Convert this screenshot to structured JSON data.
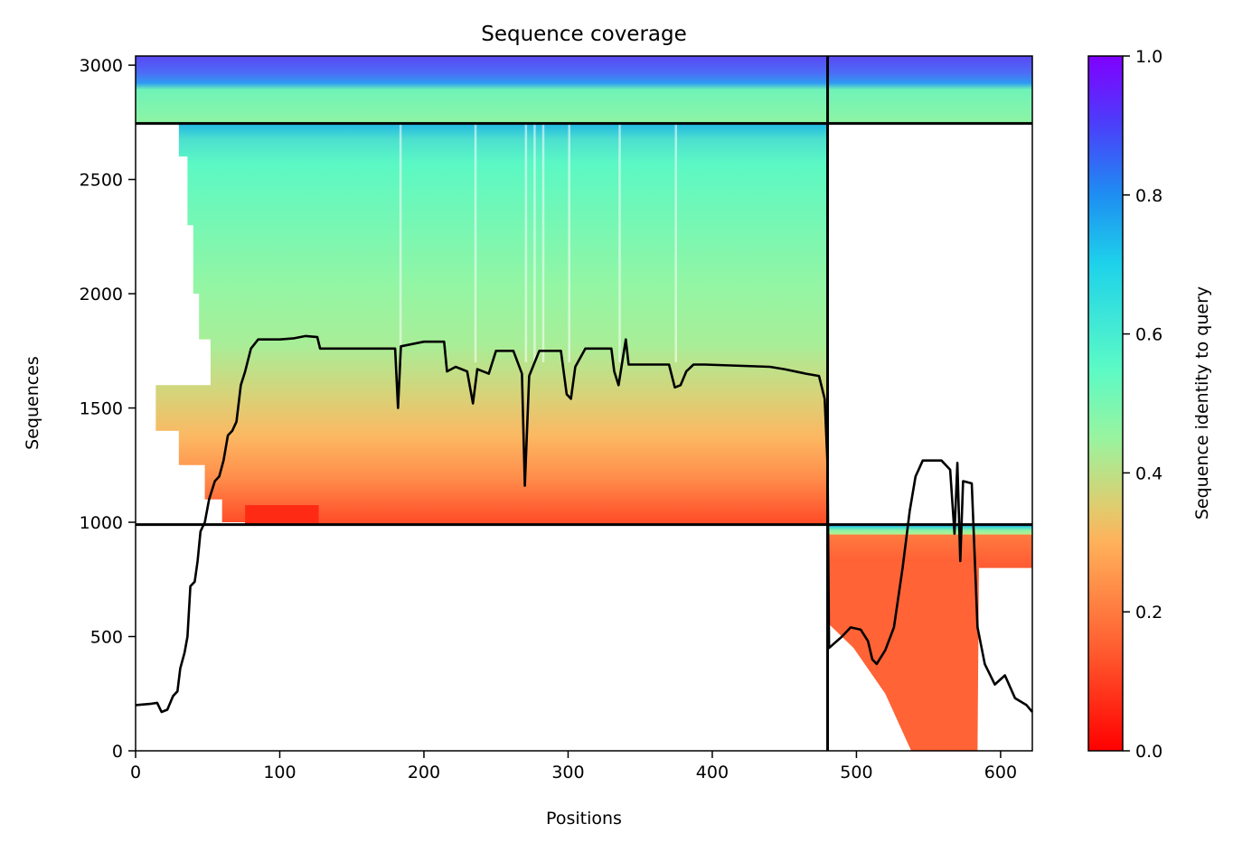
{
  "chart_data": {
    "type": "heatmap",
    "title": "Sequence coverage",
    "xlabel": "Positions",
    "ylabel": "Sequences",
    "xlim": [
      0,
      622
    ],
    "ylim": [
      0,
      3040
    ],
    "x_ticks": [
      "0",
      "100",
      "200",
      "300",
      "400",
      "500",
      "600"
    ],
    "y_ticks": [
      "0",
      "500",
      "1000",
      "1500",
      "2000",
      "2500",
      "3000"
    ],
    "colorbar": {
      "label": "Sequence identity to query",
      "range": [
        0.0,
        1.0
      ],
      "ticks": [
        "0.0",
        "0.2",
        "0.4",
        "0.6",
        "0.8",
        "1.0"
      ],
      "colormap": "rainbow"
    },
    "block_dividers": {
      "vertical_x": 480,
      "horizontal_y_left": 2745,
      "horizontal_y_right": 990
    },
    "coverage_line": [
      [
        0,
        200
      ],
      [
        10,
        205
      ],
      [
        15,
        210
      ],
      [
        18,
        170
      ],
      [
        22,
        180
      ],
      [
        26,
        240
      ],
      [
        29,
        260
      ],
      [
        31,
        360
      ],
      [
        34,
        430
      ],
      [
        36,
        500
      ],
      [
        38,
        720
      ],
      [
        41,
        740
      ],
      [
        43,
        830
      ],
      [
        45,
        960
      ],
      [
        48,
        1000
      ],
      [
        51,
        1100
      ],
      [
        55,
        1180
      ],
      [
        58,
        1200
      ],
      [
        61,
        1270
      ],
      [
        64,
        1380
      ],
      [
        67,
        1400
      ],
      [
        70,
        1440
      ],
      [
        73,
        1600
      ],
      [
        76,
        1660
      ],
      [
        80,
        1760
      ],
      [
        85,
        1800
      ],
      [
        100,
        1800
      ],
      [
        110,
        1805
      ],
      [
        118,
        1815
      ],
      [
        126,
        1810
      ],
      [
        128,
        1760
      ],
      [
        160,
        1760
      ],
      [
        180,
        1760
      ],
      [
        182,
        1500
      ],
      [
        184,
        1770
      ],
      [
        200,
        1790
      ],
      [
        214,
        1790
      ],
      [
        216,
        1660
      ],
      [
        222,
        1680
      ],
      [
        230,
        1660
      ],
      [
        234,
        1520
      ],
      [
        237,
        1670
      ],
      [
        245,
        1650
      ],
      [
        250,
        1750
      ],
      [
        262,
        1750
      ],
      [
        268,
        1650
      ],
      [
        270,
        1160
      ],
      [
        273,
        1640
      ],
      [
        280,
        1750
      ],
      [
        295,
        1750
      ],
      [
        299,
        1560
      ],
      [
        302,
        1540
      ],
      [
        305,
        1680
      ],
      [
        312,
        1760
      ],
      [
        330,
        1760
      ],
      [
        332,
        1660
      ],
      [
        335,
        1600
      ],
      [
        338,
        1720
      ],
      [
        340,
        1800
      ],
      [
        342,
        1690
      ],
      [
        370,
        1690
      ],
      [
        374,
        1590
      ],
      [
        378,
        1600
      ],
      [
        382,
        1660
      ],
      [
        387,
        1690
      ],
      [
        395,
        1690
      ],
      [
        440,
        1680
      ],
      [
        450,
        1670
      ],
      [
        465,
        1650
      ],
      [
        474,
        1640
      ],
      [
        478,
        1540
      ],
      [
        480,
        1250
      ],
      [
        481,
        450
      ],
      [
        490,
        500
      ],
      [
        496,
        540
      ],
      [
        503,
        530
      ],
      [
        508,
        480
      ],
      [
        511,
        400
      ],
      [
        514,
        380
      ],
      [
        520,
        440
      ],
      [
        526,
        540
      ],
      [
        532,
        800
      ],
      [
        537,
        1050
      ],
      [
        541,
        1200
      ],
      [
        546,
        1270
      ],
      [
        559,
        1270
      ],
      [
        565,
        1230
      ],
      [
        568,
        950
      ],
      [
        570,
        1260
      ],
      [
        572,
        830
      ],
      [
        574,
        1180
      ],
      [
        580,
        1170
      ],
      [
        584,
        540
      ],
      [
        589,
        380
      ],
      [
        596,
        290
      ],
      [
        603,
        330
      ],
      [
        610,
        230
      ],
      [
        618,
        200
      ],
      [
        622,
        170
      ]
    ]
  }
}
